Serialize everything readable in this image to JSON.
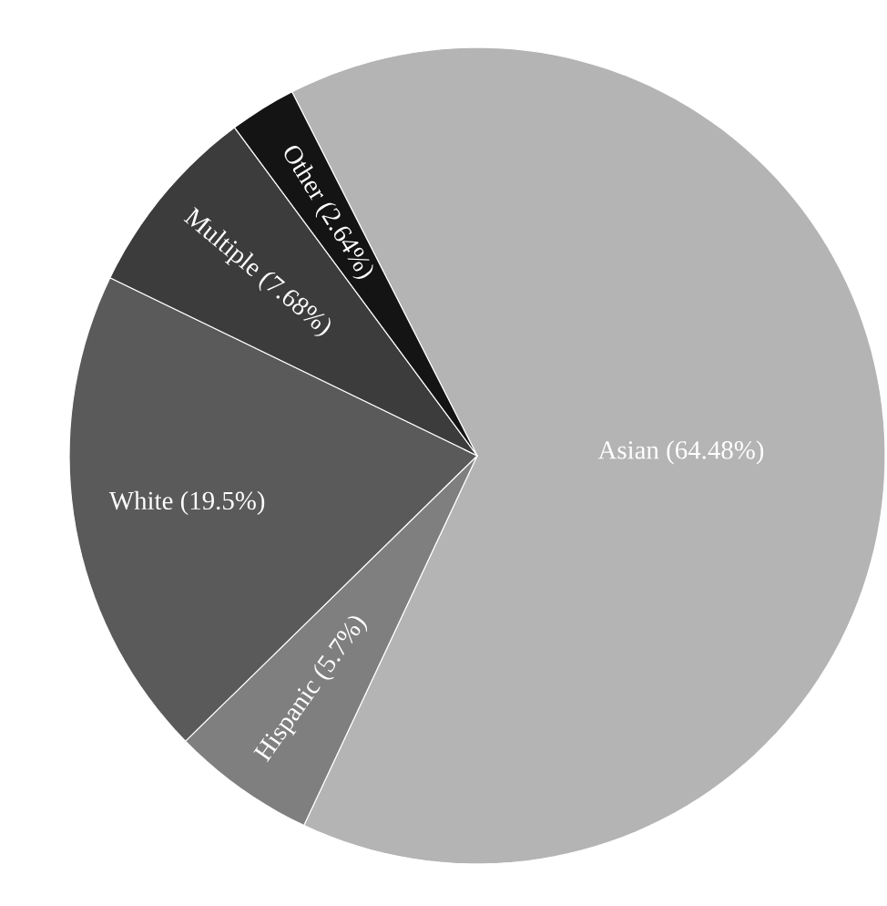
{
  "chart_data": {
    "type": "pie",
    "categories": [
      "Asian",
      "Hispanic",
      "White",
      "Multiple",
      "Other"
    ],
    "values": [
      64.48,
      5.7,
      19.5,
      7.68,
      2.64
    ],
    "colors": [
      "#b4b4b4",
      "#7f7f7f",
      "#5a5a5a",
      "#3c3c3c",
      "#141414"
    ],
    "value_labels": [
      "(64.48%)",
      "(5.7%)",
      "(19.5%)",
      "(7.68%)",
      "(2.64%)"
    ]
  }
}
